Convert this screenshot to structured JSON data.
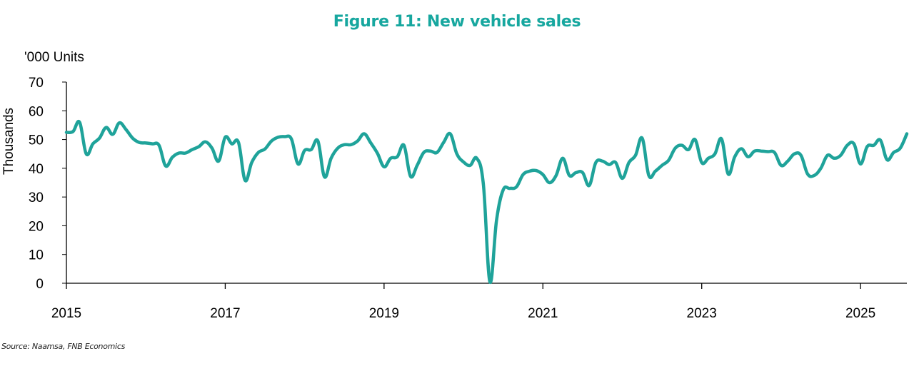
{
  "title": "Figure 11: New vehicle sales",
  "units_label": "'000 Units",
  "source": "Source: Naamsa, FNB Economics",
  "colors": {
    "title": "#17a79f",
    "line": "#1fa39a",
    "axis": "#000000"
  },
  "chart_data": {
    "type": "line",
    "title": "Figure 11: New vehicle sales",
    "ylabel": "Thousands",
    "xlabel": "",
    "ylim": [
      0,
      70
    ],
    "yticks": [
      0,
      10,
      20,
      30,
      40,
      50,
      60,
      70
    ],
    "xlim": [
      "2015-01",
      "2025-08"
    ],
    "xticks": [
      "2015",
      "2017",
      "2019",
      "2021",
      "2023",
      "2025"
    ],
    "grid": false,
    "legend": "none",
    "series": [
      {
        "x": [
          "2015-01",
          "2015-02",
          "2015-03",
          "2015-04",
          "2015-05",
          "2015-06",
          "2015-07",
          "2015-08",
          "2015-09",
          "2015-10",
          "2015-11",
          "2015-12",
          "2016-01",
          "2016-02",
          "2016-03",
          "2016-04",
          "2016-05",
          "2016-06",
          "2016-07",
          "2016-08",
          "2016-09",
          "2016-10",
          "2016-11",
          "2016-12",
          "2017-01",
          "2017-02",
          "2017-03",
          "2017-04",
          "2017-05",
          "2017-06",
          "2017-07",
          "2017-08",
          "2017-09",
          "2017-10",
          "2017-11",
          "2017-12",
          "2018-01",
          "2018-02",
          "2018-03",
          "2018-04",
          "2018-05",
          "2018-06",
          "2018-07",
          "2018-08",
          "2018-09",
          "2018-10",
          "2018-11",
          "2018-12",
          "2019-01",
          "2019-02",
          "2019-03",
          "2019-04",
          "2019-05",
          "2019-06",
          "2019-07",
          "2019-08",
          "2019-09",
          "2019-10",
          "2019-11",
          "2019-12",
          "2020-01",
          "2020-02",
          "2020-03",
          "2020-04",
          "2020-05",
          "2020-06",
          "2020-07",
          "2020-08",
          "2020-09",
          "2020-10",
          "2020-11",
          "2020-12",
          "2021-01",
          "2021-02",
          "2021-03",
          "2021-04",
          "2021-05",
          "2021-06",
          "2021-07",
          "2021-08",
          "2021-09",
          "2021-10",
          "2021-11",
          "2021-12",
          "2022-01",
          "2022-02",
          "2022-03",
          "2022-04",
          "2022-05",
          "2022-06",
          "2022-07",
          "2022-08",
          "2022-09",
          "2022-10",
          "2022-11",
          "2022-12",
          "2023-01",
          "2023-02",
          "2023-03",
          "2023-04",
          "2023-05",
          "2023-06",
          "2023-07",
          "2023-08",
          "2023-09",
          "2023-10",
          "2023-11",
          "2023-12",
          "2024-01",
          "2024-02",
          "2024-03",
          "2024-04",
          "2024-05",
          "2024-06",
          "2024-07",
          "2024-08",
          "2024-09",
          "2024-10",
          "2024-11",
          "2024-12",
          "2025-01",
          "2025-02",
          "2025-03",
          "2025-04",
          "2025-05",
          "2025-06",
          "2025-07",
          "2025-08"
        ],
        "values": [
          52.5,
          52.8,
          56.0,
          45.0,
          48.5,
          50.5,
          54.2,
          51.8,
          55.8,
          53.5,
          50.5,
          49.0,
          48.8,
          48.5,
          48.0,
          40.8,
          43.8,
          45.3,
          45.3,
          46.5,
          47.5,
          49.2,
          47.0,
          42.5,
          50.8,
          48.5,
          49.0,
          35.8,
          42.0,
          45.5,
          46.7,
          49.5,
          50.8,
          51.0,
          50.2,
          41.5,
          46.2,
          46.5,
          49.5,
          37.0,
          43.5,
          47.0,
          48.2,
          48.2,
          49.5,
          52.0,
          48.8,
          45.2,
          40.5,
          43.5,
          44.0,
          48.0,
          37.2,
          41.0,
          45.5,
          46.0,
          45.5,
          49.0,
          52.0,
          45.0,
          42.2,
          41.0,
          43.5,
          34.5,
          0.5,
          22.0,
          32.5,
          33.0,
          33.5,
          37.8,
          39.0,
          39.2,
          37.8,
          35.0,
          37.5,
          43.5,
          37.5,
          38.5,
          38.5,
          34.0,
          42.0,
          42.5,
          41.3,
          42.0,
          36.5,
          42.0,
          44.5,
          50.5,
          37.5,
          39.0,
          41.0,
          42.8,
          47.0,
          48.0,
          46.5,
          50.0,
          42.0,
          43.5,
          45.0,
          50.2,
          38.0,
          44.0,
          46.8,
          44.0,
          46.0,
          46.0,
          45.8,
          45.5,
          41.0,
          42.5,
          45.0,
          44.5,
          38.0,
          37.5,
          40.0,
          44.5,
          43.5,
          44.5,
          48.0,
          48.5,
          41.5,
          47.5,
          48.0,
          49.8,
          43.0,
          45.5,
          47.0,
          52.0
        ]
      }
    ]
  }
}
